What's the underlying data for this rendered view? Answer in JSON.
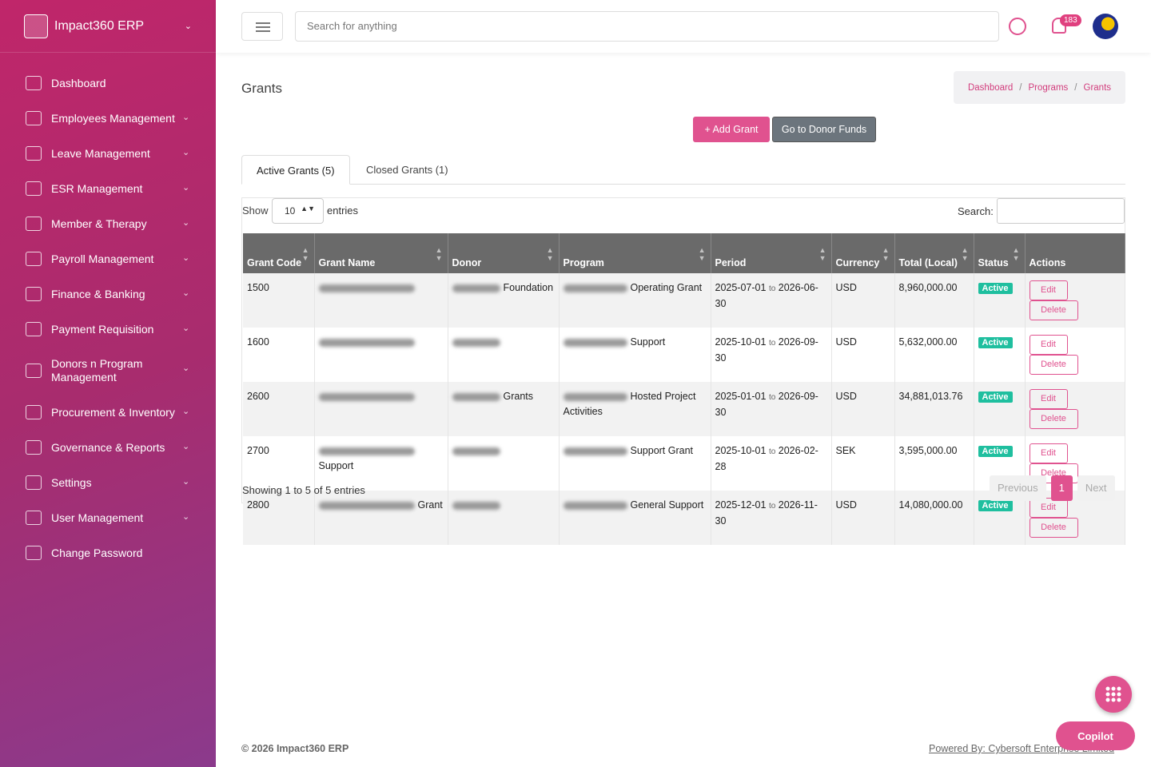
{
  "sidebar": {
    "brand": "Impact360 ERP",
    "menu": [
      {
        "label": "Dashboard",
        "expandable": false
      },
      {
        "label": "Employees Management",
        "expandable": true
      },
      {
        "label": "Leave Management",
        "expandable": true
      },
      {
        "label": "ESR Management",
        "expandable": true
      },
      {
        "label": "Member & Therapy",
        "expandable": true
      },
      {
        "label": "Payroll Management",
        "expandable": true
      },
      {
        "label": "Finance & Banking",
        "expandable": true
      },
      {
        "label": "Payment Requisition",
        "expandable": true
      },
      {
        "label": "Donors n Program Management",
        "expandable": true
      },
      {
        "label": "Procurement & Inventory",
        "expandable": true
      },
      {
        "label": "Governance & Reports",
        "expandable": true
      },
      {
        "label": "Settings",
        "expandable": true
      },
      {
        "label": "User Management",
        "expandable": true
      },
      {
        "label": "Change Password",
        "expandable": false
      }
    ]
  },
  "topbar": {
    "search_placeholder": "Search for anything",
    "notifications": 183
  },
  "page": {
    "title": "Grants",
    "breadcrumb": [
      "Dashboard",
      "Programs",
      "Grants"
    ],
    "add_button": "+ Add Grant",
    "donor_button": "Go to Donor Funds",
    "tabs": [
      "Active Grants (5)",
      "Closed Grants (1)"
    ]
  },
  "table": {
    "show": "Show",
    "page_length": 10,
    "entries": "entries",
    "search_label": "Search:",
    "columns": [
      "Grant Code",
      "Grant Name",
      "Donor",
      "Program",
      "Period",
      "Currency",
      "Total (Local)",
      "Status",
      "Actions"
    ],
    "period_separator": "to",
    "actions": [
      "Edit",
      "Delete"
    ],
    "rows": [
      {
        "code": "1500",
        "name": null,
        "donor": "Foundation",
        "program": "Operating Grant",
        "start": "2025-07-01",
        "end": "2026-06-30",
        "currency": "USD",
        "total": "8,960,000.00",
        "status": "Active"
      },
      {
        "code": "1600",
        "name": null,
        "donor": null,
        "program": "Support",
        "start": "2025-10-01",
        "end": "2026-09-30",
        "currency": "USD",
        "total": "5,632,000.00",
        "status": "Active"
      },
      {
        "code": "2600",
        "name": null,
        "donor": "Grants",
        "program": "Hosted Project Activities",
        "start": "2025-01-01",
        "end": "2026-09-30",
        "currency": "USD",
        "total": "34,881,013.76",
        "status": "Active"
      },
      {
        "code": "2700",
        "name": "Support",
        "donor": null,
        "program": "Support Grant",
        "start": "2025-10-01",
        "end": "2026-02-28",
        "currency": "SEK",
        "total": "3,595,000.00",
        "status": "Active"
      },
      {
        "code": "2800",
        "name": "Grant",
        "donor": null,
        "program": "General Support",
        "start": "2025-12-01",
        "end": "2026-11-30",
        "currency": "USD",
        "total": "14,080,000.00",
        "status": "Active"
      }
    ],
    "info": "Showing 1 to 5 of 5 entries",
    "pagination": [
      "Previous",
      "1",
      "Next"
    ]
  },
  "footer": {
    "copyright": "© 2026 Impact360 ERP",
    "powered_by": "Powered By: Cybersoft Enterprise Limited",
    "copilot": "Copilot"
  }
}
